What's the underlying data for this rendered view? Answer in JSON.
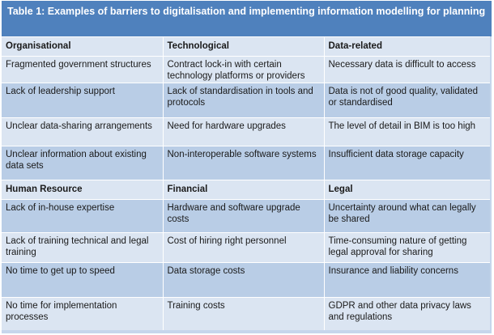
{
  "title": "Table 1: Examples of barriers to digitalisation and implementing information modelling for planning",
  "sections": [
    {
      "headers": [
        "Organisational",
        "Technological",
        "Data-related"
      ],
      "rows": [
        [
          "Fragmented government structures",
          "Contract lock-in with certain technology platforms or providers",
          "Necessary data is difficult to access"
        ],
        [
          "Lack of leadership support",
          "Lack of standardisation in tools and protocols",
          "Data is not of good quality, validated or standardised"
        ],
        [
          "Unclear data-sharing arrangements",
          "Need for hardware upgrades",
          "The level of detail in BIM is too high"
        ],
        [
          "Unclear information about existing data sets",
          "Non-interoperable software systems",
          "Insufficient data storage capacity"
        ]
      ]
    },
    {
      "headers": [
        "Human Resource",
        "Financial",
        "Legal"
      ],
      "rows": [
        [
          "Lack of in-house expertise",
          "Hardware and software upgrade costs",
          "Uncertainty around what can legally be shared"
        ],
        [
          "Lack of training technical and legal training",
          "Cost of hiring right personnel",
          "Time-consuming nature of getting legal approval for sharing"
        ],
        [
          "No time to get up to speed",
          "Data storage costs",
          "Insurance and liability concerns"
        ],
        [
          "No time for implementation processes",
          "Training costs",
          "GDPR and other data privacy laws and regulations"
        ]
      ]
    }
  ]
}
